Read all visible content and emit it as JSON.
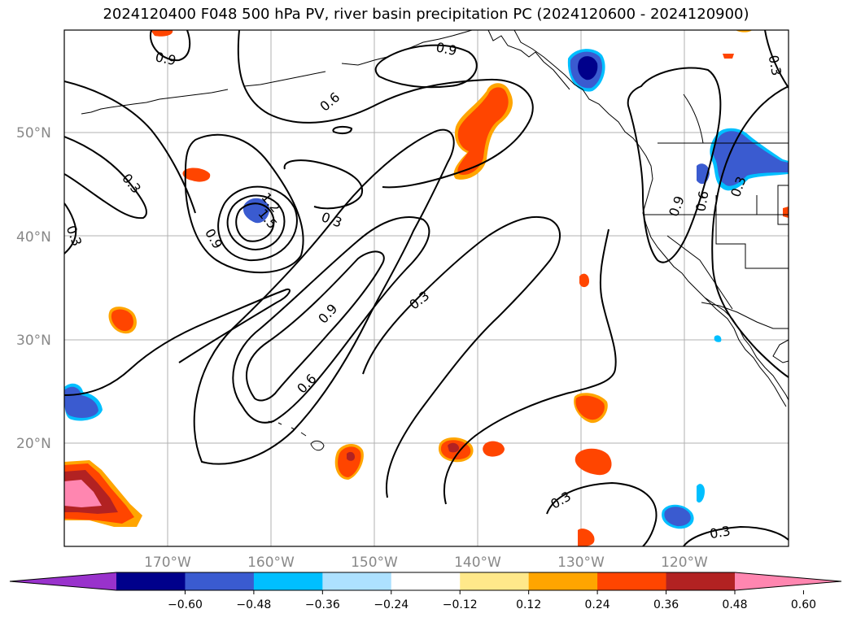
{
  "title": "2024120400 F048 500 hPa PV, river basin precipitation PC (2024120600 - 2024120900)",
  "map": {
    "lat_labels": [
      "50°N",
      "40°N",
      "30°N",
      "20°N"
    ],
    "lon_labels": [
      "170°W",
      "160°W",
      "150°W",
      "140°W",
      "130°W",
      "120°W"
    ],
    "grid_color": "#b0b0b0",
    "contour_labels": [
      "0.9",
      "0.6",
      "0.3",
      "1.2",
      "1.5"
    ]
  },
  "colorbar": {
    "ticks": [
      "−0.60",
      "−0.48",
      "−0.36",
      "−0.24",
      "−0.12",
      "0.12",
      "0.24",
      "0.36",
      "0.48",
      "0.60"
    ],
    "colors": [
      "#9932CC",
      "#00008B",
      "#3A5BD0",
      "#00BFFF",
      "#ADE1FF",
      "#FFFFFF",
      "#FFE88A",
      "#FFA500",
      "#FF4500",
      "#B22222",
      "#FF86B0"
    ]
  }
}
